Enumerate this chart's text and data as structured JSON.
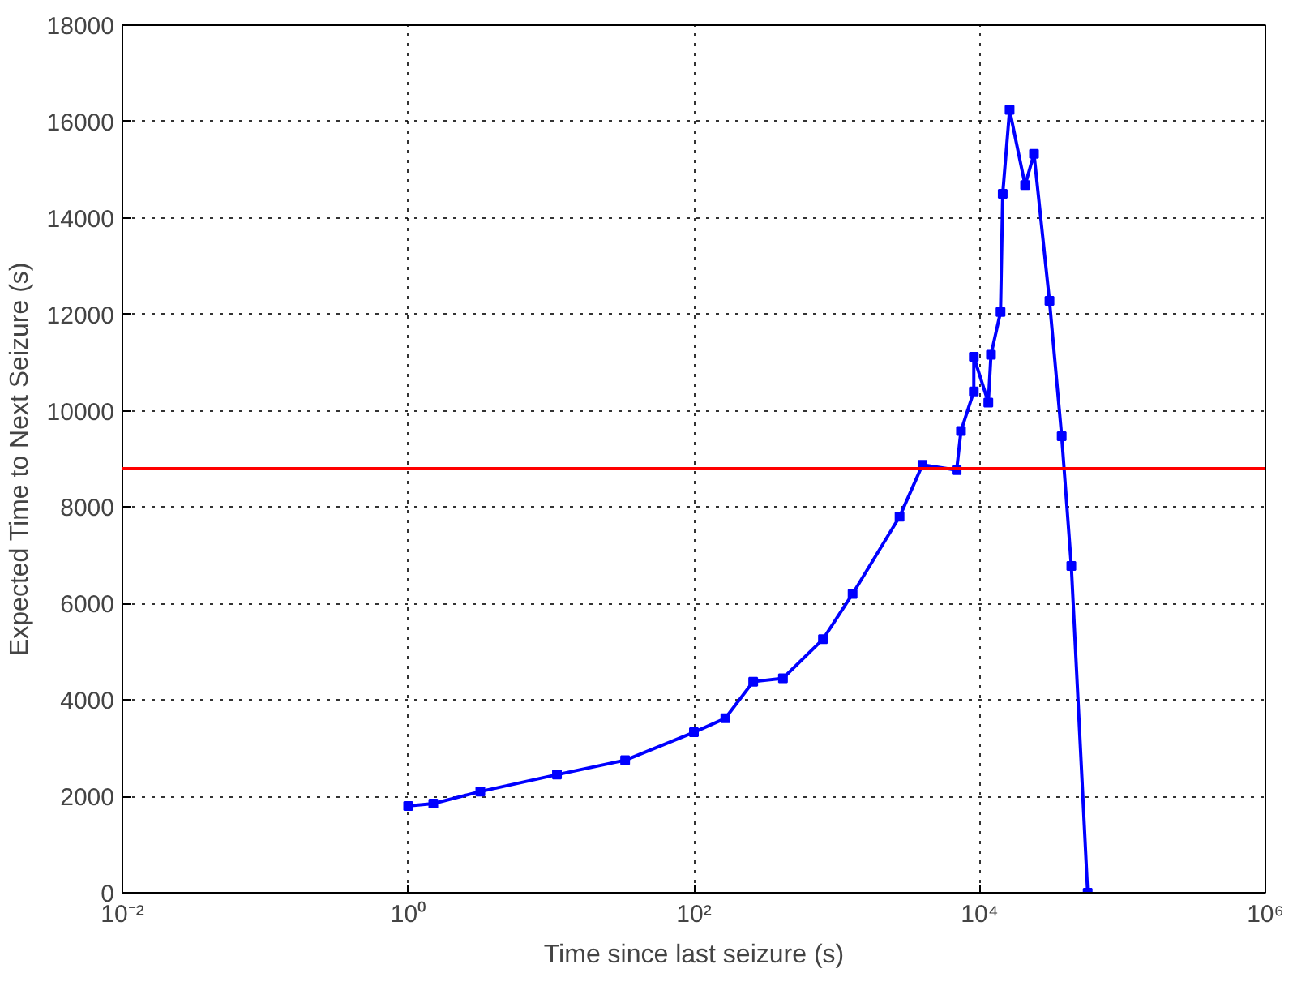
{
  "chart_data": {
    "type": "line",
    "xlabel": "Time since last seizure (s)",
    "ylabel": "Expected Time to Next Seizure (s)",
    "log": "x",
    "xlim": [
      0.01,
      1000000
    ],
    "ylim": [
      0,
      18000
    ],
    "xticks": [
      {
        "value": 0.01,
        "label": "10⁻²"
      },
      {
        "value": 1,
        "label": "10⁰"
      },
      {
        "value": 100,
        "label": "10²"
      },
      {
        "value": 10000,
        "label": "10⁴"
      },
      {
        "value": 1000000,
        "label": "10⁶"
      }
    ],
    "yticks": [
      0,
      2000,
      4000,
      6000,
      8000,
      10000,
      12000,
      14000,
      16000,
      18000
    ],
    "grid": true,
    "marker": "square",
    "line_style": "solid",
    "series": [
      {
        "color": "#0000ff",
        "x": [
          1,
          1.5,
          3.2,
          11,
          33,
          100,
          166,
          260,
          420,
          800,
          1290,
          2750,
          3980,
          6900,
          7400,
          9100,
          9100,
          11500,
          12000,
          14000,
          14500,
          16200,
          20800,
          24000,
          30800,
          37500,
          43800,
          57000
        ],
        "values": [
          1800,
          1850,
          2100,
          2450,
          2750,
          3330,
          3620,
          4380,
          4450,
          5260,
          6200,
          7800,
          8880,
          8770,
          9580,
          10400,
          11120,
          10170,
          11160,
          12050,
          14500,
          16240,
          14680,
          15330,
          12280,
          9470,
          6780,
          0
        ]
      }
    ],
    "ref_lines": [
      {
        "axis": "y",
        "value": 8800,
        "color": "#ff0000",
        "line_style": "solid"
      }
    ]
  }
}
